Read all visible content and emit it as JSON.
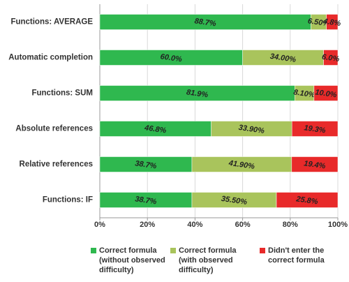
{
  "chart_data": {
    "type": "stacked-barh",
    "categories": [
      "Functions: AVERAGE",
      "Automatic completion",
      "Functions: SUM",
      "Absolute references",
      "Relative references",
      "Functions: IF"
    ],
    "series": [
      {
        "name": "Correct formula (without observed difficulty)",
        "color": "#2fb84f",
        "values": [
          88.7,
          60.0,
          81.9,
          46.8,
          38.7,
          38.7
        ],
        "value_labels": [
          "88.7%",
          "60.0%",
          "81.9%",
          "46.8%",
          "38.7%",
          "38.7%"
        ]
      },
      {
        "name": "Correct formula (with observed difficulty)",
        "color": "#a9c45c",
        "values": [
          6.5,
          34.0,
          8.1,
          33.9,
          41.9,
          35.5
        ],
        "value_labels": [
          "6.50%",
          "34.00%",
          "8.10%",
          "33.90%",
          "41.90%",
          "35.50%"
        ]
      },
      {
        "name": "Didn't enter the correct formula",
        "color": "#e82a2a",
        "values": [
          4.8,
          6.0,
          10.0,
          19.3,
          19.4,
          25.8
        ],
        "value_labels": [
          "4.8%",
          "6.0%",
          "10.0%",
          "19.3%",
          "19.4%",
          "25.8%"
        ]
      }
    ],
    "xlim": [
      0,
      100
    ],
    "xticks": [
      {
        "value": 0,
        "label": "0%"
      },
      {
        "value": 20,
        "label": "20%"
      },
      {
        "value": 40,
        "label": "40%"
      },
      {
        "value": 60,
        "label": "60%"
      },
      {
        "value": 80,
        "label": "80%"
      },
      {
        "value": 100,
        "label": "100%"
      }
    ],
    "grid": true
  }
}
